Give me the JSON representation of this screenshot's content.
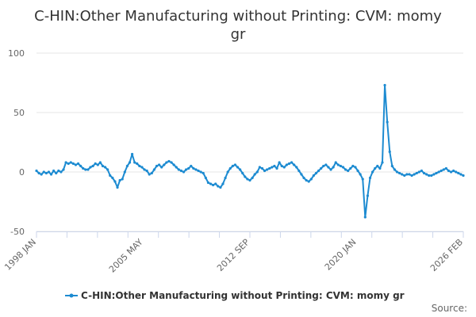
{
  "chart_data": {
    "type": "line",
    "title_line1": "C-HIN:Other Manufacturing without Printing: CVM: momy",
    "title_line2": "gr",
    "ylim": [
      -50,
      100
    ],
    "y_ticks": [
      "100",
      "50",
      "0",
      "-50"
    ],
    "x_tick_labels": [
      "1998 JAN",
      "2005 MAY",
      "2012 SEP",
      "2020 JAN",
      "2026 FEB"
    ],
    "grid": true,
    "legend_placement": "bottom",
    "series": [
      {
        "name": "C-HIN:Other Manufacturing without Printing: CVM: momy gr",
        "color": "#1d8bd1",
        "x_start": "1998 JAN",
        "x_end": "2026 FEB",
        "values": [
          1,
          -1,
          -2,
          0,
          -1,
          0,
          -2,
          1,
          -1,
          1,
          0,
          2,
          8,
          7,
          8,
          7,
          6,
          7,
          5,
          3,
          2,
          2,
          4,
          5,
          7,
          6,
          8,
          5,
          4,
          2,
          -3,
          -5,
          -8,
          -13,
          -7,
          -6,
          0,
          5,
          8,
          15,
          8,
          7,
          5,
          4,
          2,
          1,
          -2,
          -1,
          2,
          5,
          6,
          4,
          6,
          8,
          9,
          8,
          6,
          4,
          2,
          1,
          0,
          2,
          3,
          5,
          3,
          2,
          1,
          0,
          -1,
          -5,
          -9,
          -10,
          -11,
          -10,
          -12,
          -13,
          -10,
          -5,
          0,
          3,
          5,
          6,
          4,
          2,
          -1,
          -4,
          -6,
          -7,
          -5,
          -2,
          0,
          4,
          3,
          1,
          2,
          3,
          4,
          5,
          3,
          8,
          5,
          4,
          6,
          7,
          8,
          6,
          4,
          1,
          -2,
          -5,
          -7,
          -8,
          -6,
          -3,
          -1,
          1,
          3,
          5,
          6,
          4,
          2,
          4,
          8,
          6,
          5,
          4,
          2,
          1,
          3,
          5,
          4,
          1,
          -2,
          -6,
          -38,
          -20,
          -5,
          0,
          3,
          5,
          3,
          8,
          73,
          42,
          17,
          5,
          2,
          0,
          -1,
          -2,
          -3,
          -2,
          -2,
          -3,
          -2,
          -1,
          0,
          1,
          -1,
          -2,
          -3,
          -3,
          -2,
          -1,
          0,
          1,
          2,
          3,
          1,
          0,
          1,
          0,
          -1,
          -2,
          -3
        ]
      }
    ]
  },
  "credits": "Source:"
}
